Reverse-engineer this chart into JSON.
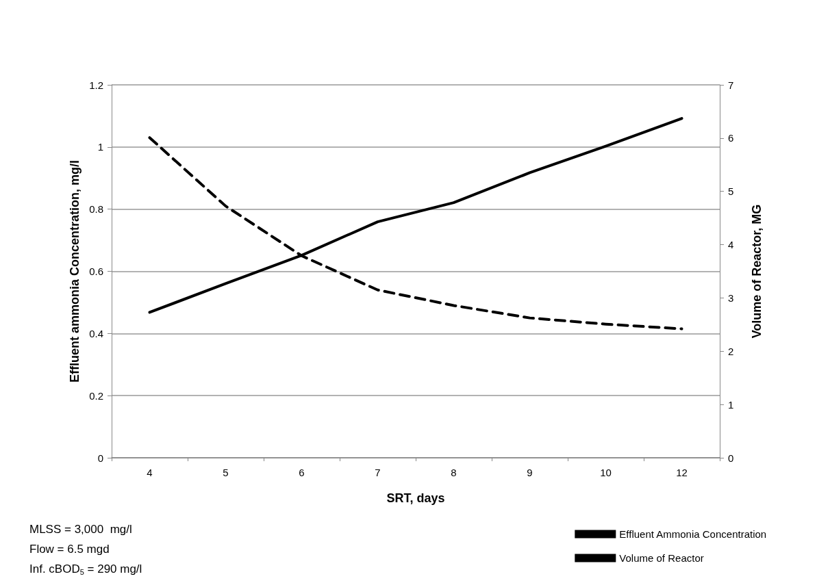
{
  "chart_data": {
    "type": "line",
    "xlabel": "SRT, days",
    "ylabel": "Effluent ammonia Concentration, mg/l",
    "y2label": "Volume of Reactor, MG",
    "categories": [
      "4",
      "5",
      "6",
      "7",
      "8",
      "9",
      "10",
      "12"
    ],
    "series": [
      {
        "name": "Effluent Ammonia Concentration",
        "color": "#000000",
        "line_style": "dashed",
        "values": [
          1.03,
          0.81,
          0.65,
          0.54,
          0.49,
          0.45,
          0.43,
          0.415
        ]
      },
      {
        "name": "Volume of Reactor",
        "color": "#000000",
        "line_style": "solid",
        "axis": "y2",
        "values": [
          2.73,
          3.27,
          3.8,
          4.43,
          4.79,
          5.35,
          5.85,
          6.37
        ]
      }
    ],
    "ylim": [
      0,
      1.2
    ],
    "yticks": [
      0,
      0.2,
      0.4,
      0.6,
      0.8,
      1,
      1.2
    ],
    "y2lim": [
      0,
      7
    ],
    "y2ticks": [
      0,
      1,
      2,
      3,
      4,
      5,
      6,
      7
    ],
    "grid": "y",
    "legend": "bottom right",
    "marker": "none",
    "annotations": [
      "MLSS = 3,000  mg/l",
      "Flow = 6.5 mgd",
      "Inf. cBOD$_{5}$ = 290 mg/l"
    ]
  }
}
